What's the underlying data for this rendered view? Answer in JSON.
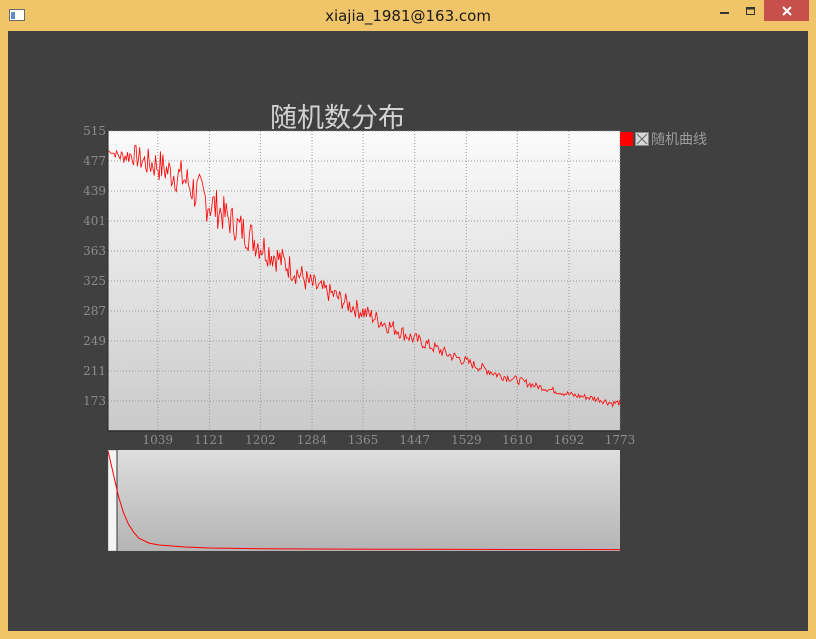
{
  "window": {
    "title": "xiajia_1981@163.com",
    "controls": [
      "minimize-icon",
      "maximize-icon",
      "close-icon"
    ]
  },
  "chart": {
    "title": "随机数分布",
    "legend": {
      "label": "随机曲线"
    }
  },
  "colors": {
    "window_frame": "#f0c56a",
    "client_background": "#404040",
    "close_button": "#c7504c",
    "series": "#ff0000",
    "text_muted": "#9c9c9c"
  },
  "chart_data": [
    {
      "type": "line",
      "title": "随机数分布",
      "x_ticks": [
        1039,
        1121,
        1202,
        1284,
        1365,
        1447,
        1529,
        1610,
        1692,
        1773
      ],
      "y_ticks": [
        515,
        477,
        439,
        401,
        363,
        325,
        287,
        249,
        211,
        173
      ],
      "xlim": [
        960,
        1773
      ],
      "ylim": [
        135,
        515
      ],
      "grid": true,
      "legend_position": "right",
      "series": [
        {
          "name": "随机曲线",
          "color": "#ff0000",
          "x": [
            960,
            980,
            1000,
            1020,
            1040,
            1060,
            1080,
            1100,
            1120,
            1140,
            1160,
            1180,
            1200,
            1220,
            1240,
            1260,
            1280,
            1300,
            1320,
            1340,
            1360,
            1380,
            1400,
            1420,
            1440,
            1460,
            1480,
            1500,
            1520,
            1540,
            1560,
            1580,
            1600,
            1620,
            1640,
            1660,
            1680,
            1700,
            1720,
            1740,
            1760,
            1773
          ],
          "values": [
            490,
            483,
            485,
            475,
            472,
            462,
            455,
            437,
            425,
            412,
            398,
            386,
            372,
            360,
            348,
            336,
            322,
            314,
            307,
            296,
            288,
            280,
            271,
            263,
            254,
            247,
            240,
            232,
            226,
            219,
            213,
            206,
            202,
            197,
            192,
            188,
            184,
            180,
            178,
            175,
            170,
            171
          ],
          "noise": [
            0,
            9,
            14,
            18,
            22,
            22,
            24,
            28,
            28,
            24,
            22,
            22,
            22,
            20,
            18,
            17,
            15,
            13,
            12,
            12,
            12,
            11,
            11,
            10,
            9,
            8,
            8,
            7,
            7,
            6,
            6,
            6,
            5,
            5,
            4,
            4,
            4,
            4,
            4,
            4,
            4,
            4
          ]
        }
      ]
    },
    {
      "type": "area",
      "role": "overview",
      "series": [
        {
          "color": "#ff0000",
          "x": [
            0,
            1,
            2,
            3,
            4,
            5,
            6,
            8,
            10,
            15,
            20,
            30,
            40,
            60,
            80,
            100
          ],
          "values": [
            100,
            78,
            55,
            38,
            26,
            18,
            12,
            7,
            5,
            3,
            2,
            1.3,
            1,
            0.7,
            0.5,
            0.4
          ]
        }
      ]
    }
  ]
}
